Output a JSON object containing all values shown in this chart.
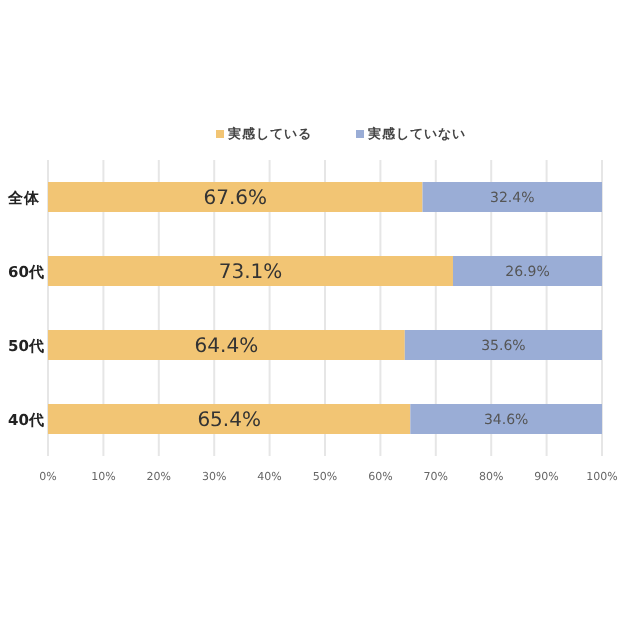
{
  "chart_data": {
    "type": "bar",
    "orientation": "horizontal",
    "stacked": true,
    "categories": [
      "全体",
      "60代",
      "50代",
      "40代"
    ],
    "series": [
      {
        "name": "実感している",
        "color": "#f2c574",
        "values": [
          67.6,
          73.1,
          64.4,
          65.4
        ],
        "value_labels": [
          "67.6%",
          "73.1%",
          "64.4%",
          "65.4%"
        ]
      },
      {
        "name": "実感していない",
        "color": "#9aadd6",
        "values": [
          32.4,
          26.9,
          35.6,
          34.6
        ],
        "value_labels": [
          "32.4%",
          "26.9%",
          "35.6%",
          "34.6%"
        ]
      }
    ],
    "xlim": [
      0,
      100
    ],
    "xticks": [
      {
        "value": 0,
        "label": "0%"
      },
      {
        "value": 10,
        "label": "10%"
      },
      {
        "value": 20,
        "label": "20%"
      },
      {
        "value": 30,
        "label": "30%"
      },
      {
        "value": 40,
        "label": "40%"
      },
      {
        "value": 50,
        "label": "50%"
      },
      {
        "value": 60,
        "label": "60%"
      },
      {
        "value": 70,
        "label": "70%"
      },
      {
        "value": 80,
        "label": "80%"
      },
      {
        "value": 90,
        "label": "90%"
      },
      {
        "value": 100,
        "label": "100%"
      }
    ],
    "grid": "x",
    "legend": "top"
  }
}
